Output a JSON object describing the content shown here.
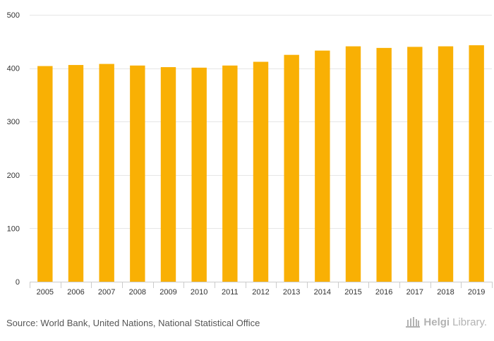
{
  "chart_data": {
    "type": "bar",
    "title": "",
    "xlabel": "",
    "ylabel": "",
    "categories": [
      "2005",
      "2006",
      "2007",
      "2008",
      "2009",
      "2010",
      "2011",
      "2012",
      "2013",
      "2014",
      "2015",
      "2016",
      "2017",
      "2018",
      "2019"
    ],
    "series": [
      {
        "name": "Value",
        "values": [
          404,
          406,
          408,
          405,
          402,
          401,
          405,
          412,
          425,
          433,
          441,
          438,
          440,
          441,
          443
        ]
      }
    ],
    "ylim": [
      0,
      500
    ],
    "yticks": [
      "0",
      "100",
      "200",
      "300",
      "400",
      "500"
    ],
    "grid": true,
    "bar_color": "#f9b004"
  },
  "footer": {
    "source": "Source: World Bank, United Nations, National Statistical Office",
    "logo_main": "Helgi",
    "logo_sub": "Library."
  },
  "colors": {
    "bar": "#f9b004",
    "grid": "#e6e6e6",
    "axis": "#cccccc",
    "text": "#333333",
    "logo": "#b3b3b3"
  }
}
